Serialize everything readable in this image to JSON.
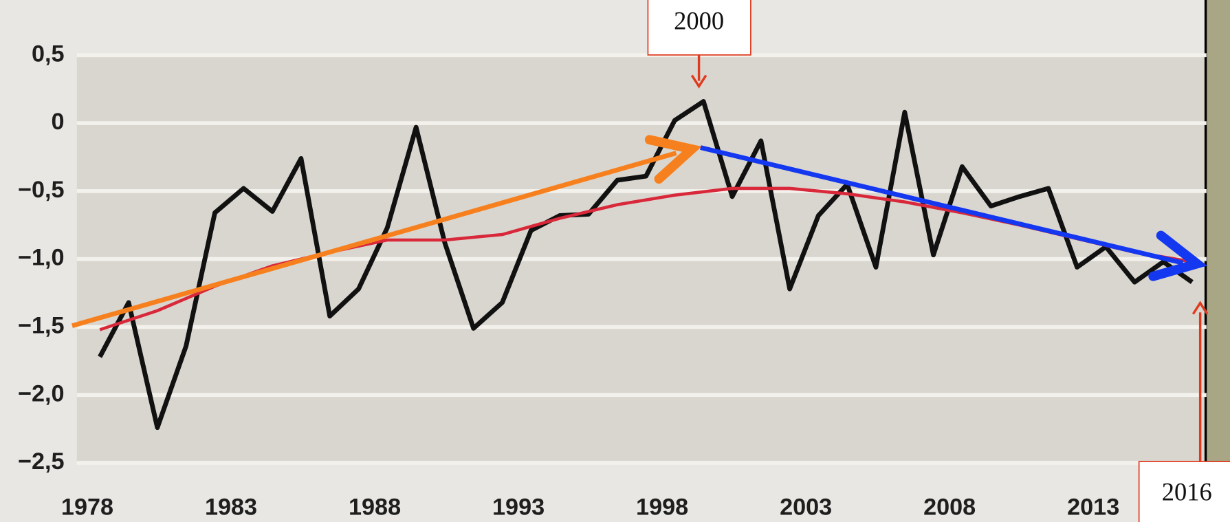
{
  "chart_data": {
    "type": "line",
    "x": [
      1978,
      1979,
      1980,
      1981,
      1982,
      1983,
      1984,
      1985,
      1986,
      1987,
      1988,
      1989,
      1990,
      1991,
      1992,
      1993,
      1994,
      1995,
      1996,
      1997,
      1998,
      1999,
      2000,
      2001,
      2002,
      2003,
      2004,
      2005,
      2006,
      2007,
      2008,
      2009,
      2010,
      2011,
      2012,
      2013,
      2014,
      2015,
      2016
    ],
    "series": [
      {
        "color": "#111111",
        "values": [
          -1.72,
          -1.32,
          -2.24,
          -1.64,
          -0.66,
          -0.48,
          -0.65,
          -0.26,
          -1.42,
          -1.22,
          -0.77,
          -0.03,
          -0.88,
          -1.51,
          -1.32,
          -0.79,
          -0.68,
          -0.67,
          -0.42,
          -0.39,
          0.02,
          0.16,
          -0.54,
          -0.13,
          -1.22,
          -0.68,
          -0.45,
          -1.06,
          0.08,
          -0.97,
          -0.32,
          -0.61,
          -0.54,
          -0.48,
          -1.06,
          -0.91,
          -1.17,
          -1.02,
          -1.17
        ]
      },
      {
        "color": "#d8283a",
        "x": [
          1978,
          1980,
          1982,
          1984,
          1986,
          1988,
          1990,
          1992,
          1994,
          1996,
          1998,
          2000,
          2002,
          2004,
          2006,
          2008,
          2010,
          2012,
          2014,
          2016
        ],
        "values": [
          -1.52,
          -1.38,
          -1.2,
          -1.05,
          -0.95,
          -0.86,
          -0.86,
          -0.82,
          -0.7,
          -0.6,
          -0.53,
          -0.48,
          -0.48,
          -0.52,
          -0.58,
          -0.66,
          -0.75,
          -0.85,
          -0.95,
          -1.02
        ]
      }
    ],
    "xlim": [
      1977.2,
      2016.5
    ],
    "xticks": [
      1978,
      1983,
      1988,
      1993,
      1998,
      2003,
      2008,
      2013
    ],
    "ylim": [
      -2.6,
      0.6
    ],
    "yticks": [
      {
        "value": 0.5,
        "label": "0,5"
      },
      0,
      {
        "value": -0.5,
        "label": "−0,5"
      },
      {
        "value": -1.0,
        "label": "−1,0"
      },
      {
        "value": -1.5,
        "label": "−1,5"
      },
      {
        "value": -2.0,
        "label": "−2,0"
      },
      {
        "value": -2.5,
        "label": "−2,5"
      }
    ],
    "grid": true,
    "annotations": [
      "2000",
      "2016"
    ]
  }
}
